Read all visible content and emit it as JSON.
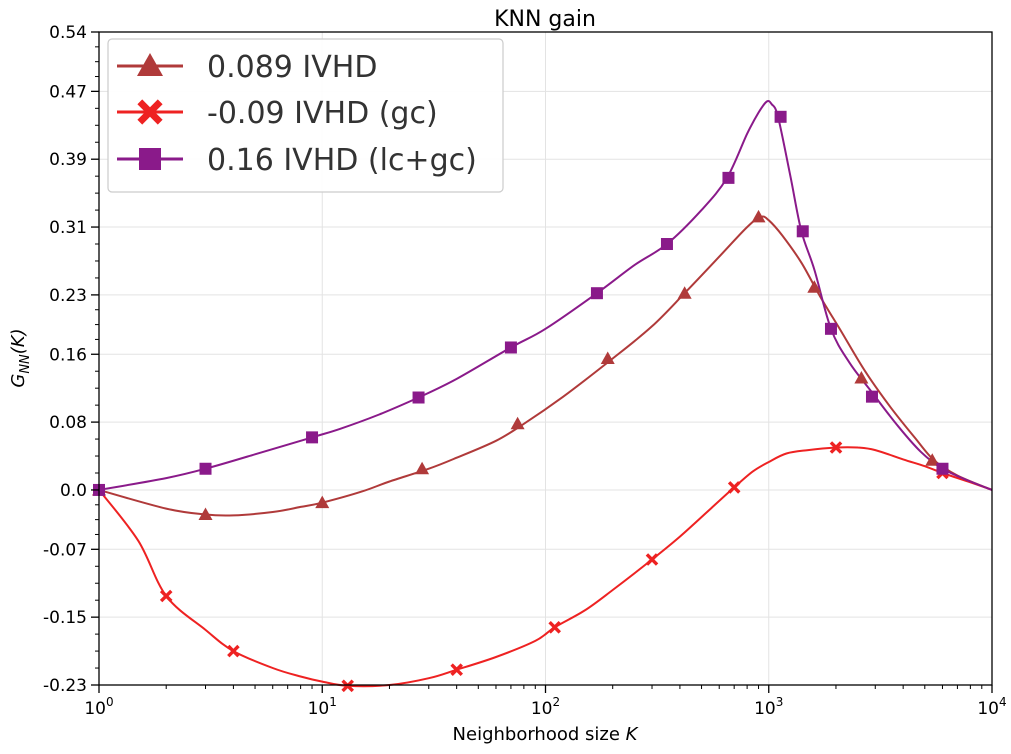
{
  "chart_data": {
    "type": "line",
    "title": "KNN gain",
    "xlabel": "Neighborhood size",
    "xlabel_var": "K",
    "ylabel_main": "G",
    "ylabel_sub": "NN",
    "ylabel_rest": "(K)",
    "xscale": "log",
    "xlim": [
      1,
      10000
    ],
    "ylim": [
      -0.23,
      0.54
    ],
    "yticks": [
      "0.54",
      "0.47",
      "0.39",
      "0.31",
      "0.23",
      "0.16",
      "0.08",
      "0.0",
      "-0.07",
      "-0.15",
      "-0.23"
    ],
    "ytick_values": [
      0.54,
      0.47,
      0.39,
      0.31,
      0.23,
      0.16,
      0.08,
      0.0,
      -0.07,
      -0.15,
      -0.23
    ],
    "xticks": [
      {
        "value": 1,
        "base": "10",
        "exp": "0"
      },
      {
        "value": 10,
        "base": "10",
        "exp": "1"
      },
      {
        "value": 100,
        "base": "10",
        "exp": "2"
      },
      {
        "value": 1000,
        "base": "10",
        "exp": "3"
      },
      {
        "value": 10000,
        "base": "10",
        "exp": "4"
      }
    ],
    "grid": true,
    "legend_position": "top-left",
    "series": [
      {
        "name": "0.089 IVHD",
        "color": "#b03a3a",
        "marker": "triangle",
        "curve": [
          [
            1,
            0.0
          ],
          [
            2,
            -0.022
          ],
          [
            3,
            -0.029
          ],
          [
            4,
            -0.03
          ],
          [
            6,
            -0.026
          ],
          [
            8,
            -0.02
          ],
          [
            10,
            -0.015
          ],
          [
            15,
            -0.002
          ],
          [
            20,
            0.01
          ],
          [
            30,
            0.025
          ],
          [
            40,
            0.038
          ],
          [
            60,
            0.058
          ],
          [
            80,
            0.078
          ],
          [
            120,
            0.11
          ],
          [
            200,
            0.155
          ],
          [
            300,
            0.193
          ],
          [
            420,
            0.232
          ],
          [
            600,
            0.275
          ],
          [
            800,
            0.31
          ],
          [
            920,
            0.322
          ],
          [
            1000,
            0.318
          ],
          [
            1150,
            0.3
          ],
          [
            1400,
            0.268
          ],
          [
            1700,
            0.228
          ],
          [
            2100,
            0.188
          ],
          [
            2700,
            0.14
          ],
          [
            3500,
            0.098
          ],
          [
            4500,
            0.062
          ],
          [
            5500,
            0.035
          ],
          [
            7000,
            0.017
          ],
          [
            10000,
            0.0
          ]
        ],
        "markers": [
          [
            1,
            0.0
          ],
          [
            3,
            -0.029
          ],
          [
            10,
            -0.015
          ],
          [
            28,
            0.025
          ],
          [
            75,
            0.078
          ],
          [
            190,
            0.155
          ],
          [
            420,
            0.232
          ],
          [
            900,
            0.322
          ],
          [
            1600,
            0.239
          ],
          [
            2600,
            0.132
          ],
          [
            5400,
            0.035
          ]
        ]
      },
      {
        "name": "-0.09 IVHD (gc)",
        "color": "#ee2222",
        "marker": "x",
        "curve": [
          [
            1,
            0.0
          ],
          [
            1.5,
            -0.06
          ],
          [
            2,
            -0.125
          ],
          [
            3,
            -0.165
          ],
          [
            4,
            -0.19
          ],
          [
            6,
            -0.21
          ],
          [
            8,
            -0.22
          ],
          [
            10,
            -0.226
          ],
          [
            13,
            -0.231
          ],
          [
            20,
            -0.23
          ],
          [
            30,
            -0.222
          ],
          [
            40,
            -0.212
          ],
          [
            60,
            -0.197
          ],
          [
            90,
            -0.178
          ],
          [
            110,
            -0.162
          ],
          [
            150,
            -0.142
          ],
          [
            200,
            -0.118
          ],
          [
            300,
            -0.082
          ],
          [
            400,
            -0.055
          ],
          [
            550,
            -0.022
          ],
          [
            700,
            0.003
          ],
          [
            850,
            0.022
          ],
          [
            1000,
            0.033
          ],
          [
            1200,
            0.043
          ],
          [
            1500,
            0.047
          ],
          [
            2000,
            0.05
          ],
          [
            2500,
            0.05
          ],
          [
            3000,
            0.047
          ],
          [
            4000,
            0.036
          ],
          [
            5000,
            0.028
          ],
          [
            6000,
            0.02
          ],
          [
            8000,
            0.009
          ],
          [
            10000,
            0.0
          ]
        ],
        "markers": [
          [
            2,
            -0.125
          ],
          [
            4,
            -0.19
          ],
          [
            13,
            -0.231
          ],
          [
            40,
            -0.212
          ],
          [
            110,
            -0.162
          ],
          [
            300,
            -0.082
          ],
          [
            700,
            0.003
          ],
          [
            2000,
            0.05
          ],
          [
            6000,
            0.02
          ]
        ]
      },
      {
        "name": "0.16 IVHD (lc+gc)",
        "color": "#8a1a8a",
        "marker": "square",
        "curve": [
          [
            1,
            0.0
          ],
          [
            2,
            0.014
          ],
          [
            3,
            0.025
          ],
          [
            5,
            0.042
          ],
          [
            9,
            0.062
          ],
          [
            12,
            0.072
          ],
          [
            18,
            0.089
          ],
          [
            27,
            0.109
          ],
          [
            40,
            0.131
          ],
          [
            70,
            0.168
          ],
          [
            100,
            0.19
          ],
          [
            170,
            0.232
          ],
          [
            250,
            0.265
          ],
          [
            350,
            0.29
          ],
          [
            500,
            0.33
          ],
          [
            650,
            0.368
          ],
          [
            800,
            0.42
          ],
          [
            900,
            0.445
          ],
          [
            980,
            0.458
          ],
          [
            1030,
            0.455
          ],
          [
            1100,
            0.44
          ],
          [
            1250,
            0.37
          ],
          [
            1400,
            0.305
          ],
          [
            1600,
            0.26
          ],
          [
            1900,
            0.19
          ],
          [
            2300,
            0.15
          ],
          [
            2900,
            0.115
          ],
          [
            3800,
            0.075
          ],
          [
            4800,
            0.045
          ],
          [
            6000,
            0.025
          ],
          [
            8000,
            0.01
          ],
          [
            10000,
            0.0
          ]
        ],
        "markers": [
          [
            1,
            0.0
          ],
          [
            3,
            0.025
          ],
          [
            9,
            0.062
          ],
          [
            27,
            0.109
          ],
          [
            70,
            0.168
          ],
          [
            170,
            0.232
          ],
          [
            350,
            0.29
          ],
          [
            660,
            0.368
          ],
          [
            1130,
            0.44
          ],
          [
            1420,
            0.305
          ],
          [
            1900,
            0.19
          ],
          [
            2900,
            0.11
          ],
          [
            6000,
            0.025
          ]
        ]
      }
    ]
  }
}
